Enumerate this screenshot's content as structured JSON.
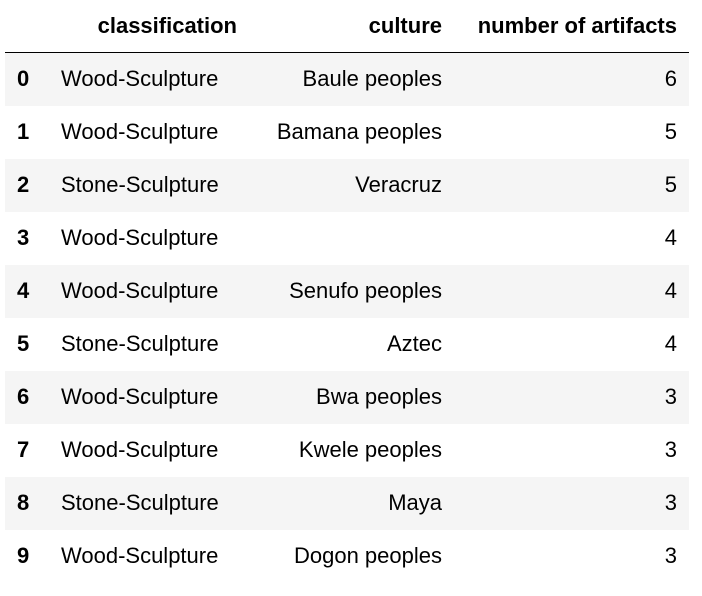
{
  "table": {
    "columns": [
      "",
      "classification",
      "culture",
      "number of artifacts"
    ],
    "rows": [
      {
        "index": "0",
        "classification": "Wood-Sculpture",
        "culture": "Baule peoples",
        "count": "6"
      },
      {
        "index": "1",
        "classification": "Wood-Sculpture",
        "culture": "Bamana peoples",
        "count": "5"
      },
      {
        "index": "2",
        "classification": "Stone-Sculpture",
        "culture": "Veracruz",
        "count": "5"
      },
      {
        "index": "3",
        "classification": "Wood-Sculpture",
        "culture": "",
        "count": "4"
      },
      {
        "index": "4",
        "classification": "Wood-Sculpture",
        "culture": "Senufo peoples",
        "count": "4"
      },
      {
        "index": "5",
        "classification": "Stone-Sculpture",
        "culture": "Aztec",
        "count": "4"
      },
      {
        "index": "6",
        "classification": "Wood-Sculpture",
        "culture": "Bwa peoples",
        "count": "3"
      },
      {
        "index": "7",
        "classification": "Wood-Sculpture",
        "culture": "Kwele peoples",
        "count": "3"
      },
      {
        "index": "8",
        "classification": "Stone-Sculpture",
        "culture": "Maya",
        "count": "3"
      },
      {
        "index": "9",
        "classification": "Wood-Sculpture",
        "culture": "Dogon peoples",
        "count": "3"
      }
    ]
  },
  "colors": {
    "striped_row": "#f5f5f5",
    "header_rule": "#000000"
  }
}
